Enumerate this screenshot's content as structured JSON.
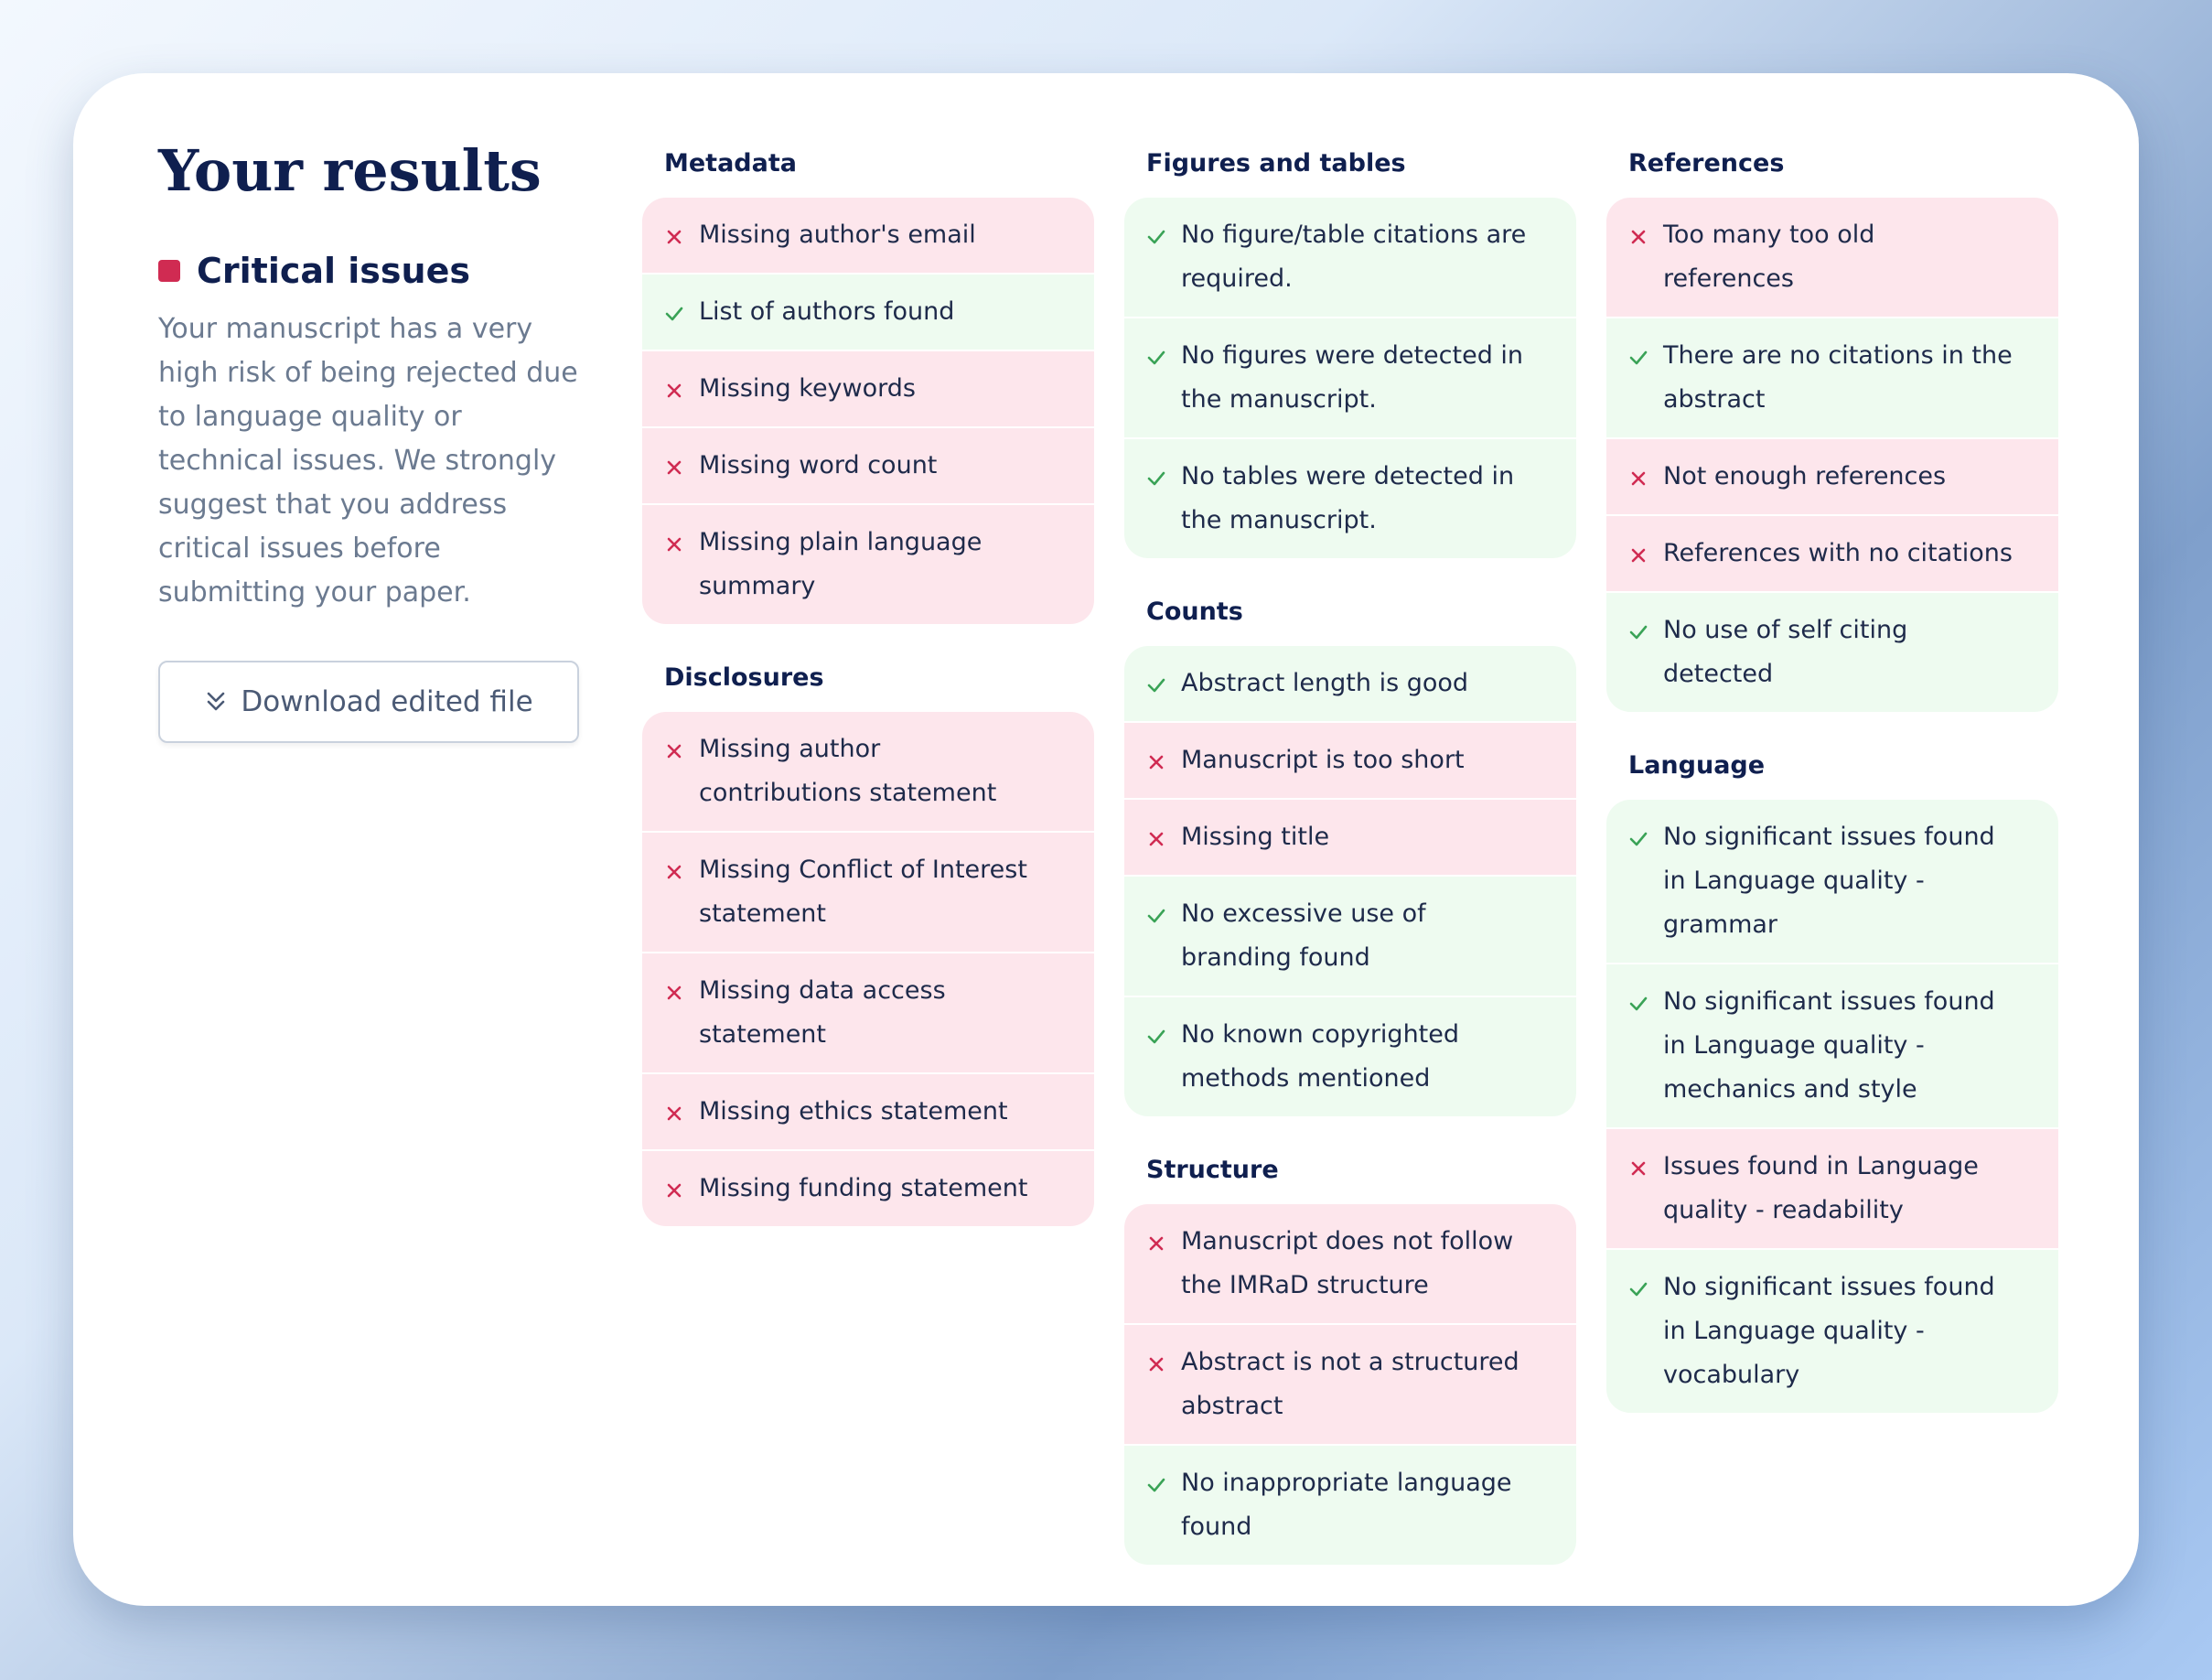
{
  "left": {
    "title": "Your results",
    "label": "Critical issues",
    "paragraph": "Your manuscript has a very high risk of being rejected due to language quality or technical issues. We strongly suggest that you address critical issues before submitting your paper.",
    "button": "Download edited file"
  },
  "columns": [
    {
      "sections": [
        {
          "heading": "Metadata",
          "items": [
            {
              "text": "Missing author's email",
              "status": "fail"
            },
            {
              "text": "List of authors found",
              "status": "pass"
            },
            {
              "text": "Missing keywords",
              "status": "fail"
            },
            {
              "text": "Missing word count",
              "status": "fail"
            },
            {
              "text": "Missing plain language summary",
              "status": "fail"
            }
          ]
        },
        {
          "heading": "Disclosures",
          "items": [
            {
              "text": "Missing author contributions statement",
              "status": "fail"
            },
            {
              "text": "Missing Conflict of Interest statement",
              "status": "fail"
            },
            {
              "text": "Missing data access statement",
              "status": "fail"
            },
            {
              "text": "Missing ethics statement",
              "status": "fail"
            },
            {
              "text": "Missing funding statement",
              "status": "fail"
            }
          ]
        }
      ]
    },
    {
      "sections": [
        {
          "heading": "Figures and tables",
          "items": [
            {
              "text": "No figure/table citations are required.",
              "status": "pass"
            },
            {
              "text": "No figures were detected in the manuscript.",
              "status": "pass"
            },
            {
              "text": "No tables were detected in the manuscript.",
              "status": "pass"
            }
          ]
        },
        {
          "heading": "Counts",
          "items": [
            {
              "text": "Abstract length is good",
              "status": "pass"
            },
            {
              "text": "Manuscript is too short",
              "status": "fail"
            },
            {
              "text": "Missing title",
              "status": "fail"
            },
            {
              "text": "No excessive use of branding found",
              "status": "pass"
            },
            {
              "text": "No known copyrighted methods mentioned",
              "status": "pass"
            }
          ]
        },
        {
          "heading": "Structure",
          "items": [
            {
              "text": "Manuscript does not follow the IMRaD structure",
              "status": "fail"
            },
            {
              "text": "Abstract is not a structured abstract",
              "status": "fail"
            },
            {
              "text": "No inappropriate language found",
              "status": "pass"
            }
          ]
        }
      ]
    },
    {
      "sections": [
        {
          "heading": "References",
          "items": [
            {
              "text": "Too many too old references",
              "status": "fail"
            },
            {
              "text": "There are no citations in the abstract",
              "status": "pass"
            },
            {
              "text": "Not enough references",
              "status": "fail"
            },
            {
              "text": "References with no citations",
              "status": "fail"
            },
            {
              "text": "No use of self citing detected",
              "status": "pass"
            }
          ]
        },
        {
          "heading": "Language",
          "items": [
            {
              "text": "No significant issues found in Language quality - grammar",
              "status": "pass"
            },
            {
              "text": "No significant issues found in Language quality - mechanics and style",
              "status": "pass"
            },
            {
              "text": "Issues found in Language quality - readability",
              "status": "fail"
            },
            {
              "text": "No significant issues found in Language quality - vocabulary",
              "status": "pass"
            }
          ]
        }
      ]
    }
  ]
}
